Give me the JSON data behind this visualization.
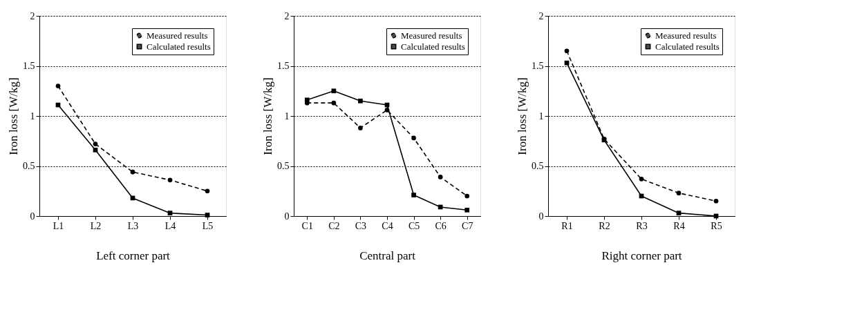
{
  "chart_data": [
    {
      "type": "line",
      "xlabel": "Left corner part",
      "ylabel": "Iron loss [W/kg]",
      "categories": [
        "L1",
        "L2",
        "L3",
        "L4",
        "L5"
      ],
      "ylim": [
        0,
        2
      ],
      "yticks": [
        0,
        0.5,
        1,
        1.5,
        2
      ],
      "grid": "y",
      "legend": "top right",
      "series": [
        {
          "name": "Measured results",
          "color": "#000000",
          "marker": "circle",
          "line_style": "dashed",
          "values": [
            1.3,
            0.72,
            0.44,
            0.36,
            0.25
          ]
        },
        {
          "name": "Calculated results",
          "color": "#000000",
          "marker": "square",
          "line_style": "solid",
          "values": [
            1.11,
            0.66,
            0.18,
            0.03,
            0.01
          ]
        }
      ]
    },
    {
      "type": "line",
      "xlabel": "Central part",
      "ylabel": "Iron loss [W/kg]",
      "categories": [
        "C1",
        "C2",
        "C3",
        "C4",
        "C5",
        "C6",
        "C7"
      ],
      "ylim": [
        0,
        2
      ],
      "yticks": [
        0,
        0.5,
        1,
        1.5,
        2
      ],
      "grid": "y",
      "legend": "top right",
      "series": [
        {
          "name": "Measured results",
          "color": "#000000",
          "marker": "circle",
          "line_style": "dashed",
          "values": [
            1.13,
            1.13,
            0.88,
            1.06,
            0.78,
            0.39,
            0.2
          ]
        },
        {
          "name": "Calculated results",
          "color": "#000000",
          "marker": "square",
          "line_style": "solid",
          "values": [
            1.16,
            1.25,
            1.15,
            1.11,
            0.21,
            0.09,
            0.06
          ]
        }
      ]
    },
    {
      "type": "line",
      "xlabel": "Right corner part",
      "ylabel": "Iron loss [W/kg]",
      "categories": [
        "R1",
        "R2",
        "R3",
        "R4",
        "R5"
      ],
      "ylim": [
        0,
        2
      ],
      "yticks": [
        0,
        0.5,
        1,
        1.5,
        2
      ],
      "grid": "y",
      "legend": "top right",
      "series": [
        {
          "name": "Measured results",
          "color": "#000000",
          "marker": "circle",
          "line_style": "dashed",
          "values": [
            1.65,
            0.77,
            0.37,
            0.23,
            0.15
          ]
        },
        {
          "name": "Calculated results",
          "color": "#000000",
          "marker": "square",
          "line_style": "solid",
          "values": [
            1.53,
            0.76,
            0.2,
            0.03,
            0.0
          ]
        }
      ]
    }
  ]
}
